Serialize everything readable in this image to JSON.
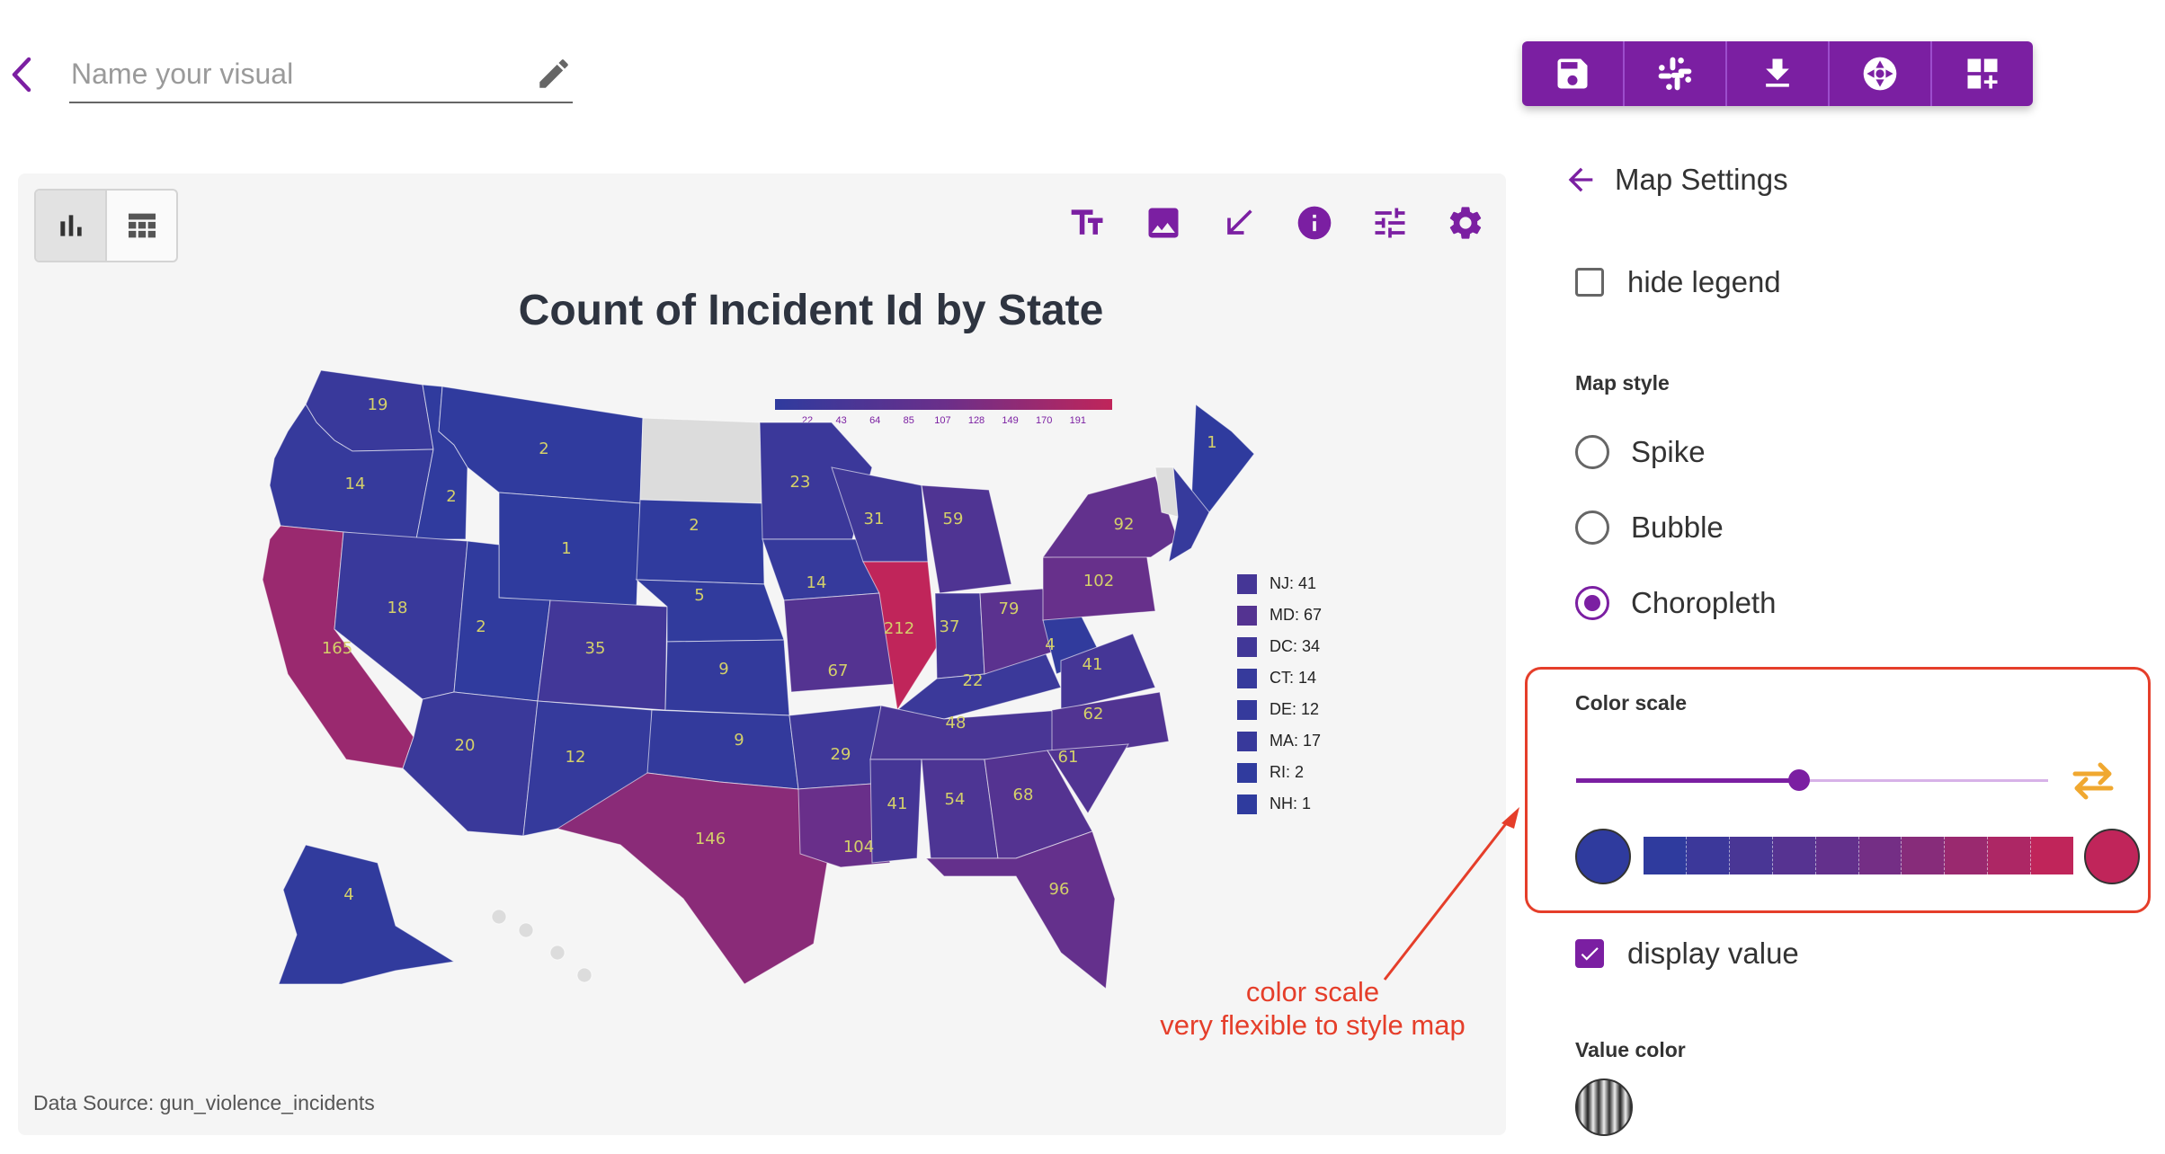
{
  "header": {
    "name_placeholder": "Name your visual"
  },
  "toolbar": {
    "buttons": [
      "save-icon",
      "slack-icon",
      "download-icon",
      "camera-shutter-icon",
      "add-dashboard-icon"
    ]
  },
  "view_toggle": {
    "chart_icon": "bar-chart-icon",
    "table_icon": "table-icon"
  },
  "chart_tools": [
    "text-size-icon",
    "image-icon",
    "resize-arrow-icon",
    "info-icon",
    "sliders-icon",
    "gear-icon"
  ],
  "colors": {
    "accent": "#7b1fa2",
    "low": "#2f3b9e",
    "high": "#c0255a",
    "annotation": "#e53e2a",
    "no_data": "#dcdcdc"
  },
  "chart_data": {
    "type": "choropleth",
    "title": "Count of Incident Id by State",
    "source": "Data Source: gun_violence_incidents",
    "legend_ticks": [
      "22",
      "43",
      "64",
      "85",
      "107",
      "128",
      "149",
      "170",
      "191"
    ],
    "state_values": [
      {
        "state": "WA",
        "value": 19
      },
      {
        "state": "OR",
        "value": 14
      },
      {
        "state": "ID",
        "value": 2
      },
      {
        "state": "MT",
        "value": 2
      },
      {
        "state": "WY",
        "value": 1
      },
      {
        "state": "CA",
        "value": 165
      },
      {
        "state": "NV",
        "value": 18
      },
      {
        "state": "UT",
        "value": 2
      },
      {
        "state": "AZ",
        "value": 20
      },
      {
        "state": "CO",
        "value": 35
      },
      {
        "state": "NM",
        "value": 12
      },
      {
        "state": "SD",
        "value": 2
      },
      {
        "state": "NE",
        "value": 5
      },
      {
        "state": "KS",
        "value": 9
      },
      {
        "state": "OK",
        "value": 9
      },
      {
        "state": "TX",
        "value": 146
      },
      {
        "state": "MN",
        "value": 23
      },
      {
        "state": "IA",
        "value": 14
      },
      {
        "state": "MO",
        "value": 67
      },
      {
        "state": "AR",
        "value": 29
      },
      {
        "state": "LA",
        "value": 104
      },
      {
        "state": "WI",
        "value": 31
      },
      {
        "state": "IL",
        "value": 212
      },
      {
        "state": "MI",
        "value": 59
      },
      {
        "state": "IN",
        "value": 37
      },
      {
        "state": "KY",
        "value": 22
      },
      {
        "state": "TN",
        "value": 48
      },
      {
        "state": "MS",
        "value": 41
      },
      {
        "state": "AL",
        "value": 54
      },
      {
        "state": "GA",
        "value": 68
      },
      {
        "state": "FL",
        "value": 96
      },
      {
        "state": "OH",
        "value": 79
      },
      {
        "state": "WV",
        "value": 4
      },
      {
        "state": "VA",
        "value": 41
      },
      {
        "state": "NC",
        "value": 62
      },
      {
        "state": "SC",
        "value": 61
      },
      {
        "state": "PA",
        "value": 102
      },
      {
        "state": "NY",
        "value": 92
      },
      {
        "state": "ME",
        "value": 1
      },
      {
        "state": "AK",
        "value": 4
      },
      {
        "state": "ND",
        "value": null
      },
      {
        "state": "VT",
        "value": null
      }
    ],
    "small_states": [
      {
        "label": "NJ: 41",
        "value": 41
      },
      {
        "label": "MD: 67",
        "value": 67
      },
      {
        "label": "DC: 34",
        "value": 34
      },
      {
        "label": "CT: 14",
        "value": 14
      },
      {
        "label": "DE: 12",
        "value": 12
      },
      {
        "label": "MA: 17",
        "value": 17
      },
      {
        "label": "RI: 2",
        "value": 2
      },
      {
        "label": "NH: 1",
        "value": 1
      }
    ],
    "scale_min": 1,
    "scale_max": 212
  },
  "annotation": {
    "line1": "color scale",
    "line2": "very flexible to style map"
  },
  "settings": {
    "title": "Map Settings",
    "hide_legend_label": "hide legend",
    "hide_legend_checked": false,
    "map_style_label": "Map style",
    "map_styles": [
      "Spike",
      "Bubble",
      "Choropleth"
    ],
    "map_style_selected": "Choropleth",
    "color_scale_label": "Color scale",
    "color_scale_slider_fraction": 0.47,
    "display_value_label": "display value",
    "display_value_checked": true,
    "value_color_label": "Value color"
  }
}
